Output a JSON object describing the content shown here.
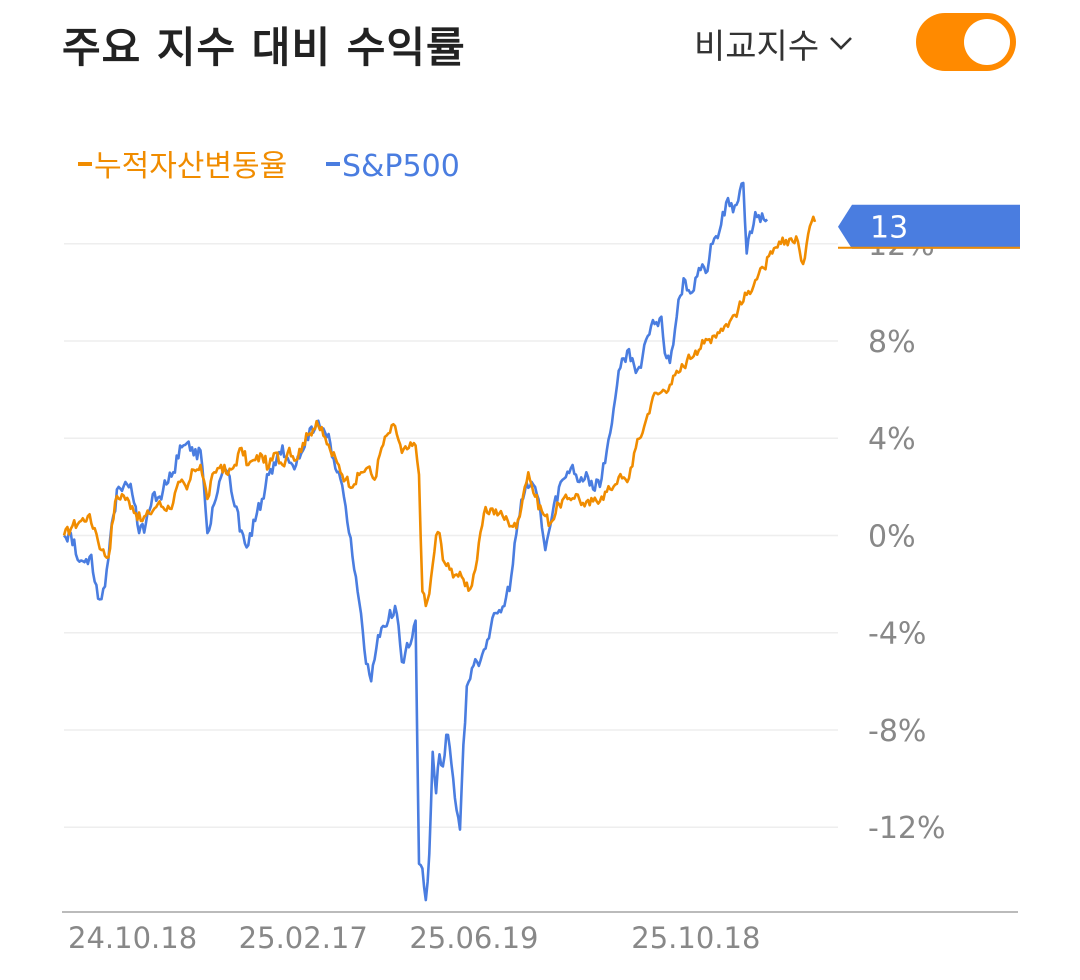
{
  "header": {
    "title": "주요 지수 대비 수익률",
    "compare_label": "비교지수",
    "toggle_on": true
  },
  "colors": {
    "portfolio": "#f08c00",
    "benchmark": "#4a7de0",
    "grid": "#eeeeee",
    "axis_text": "#888888",
    "toggle": "#ff8a00"
  },
  "chart_data": {
    "type": "line",
    "legend": [
      {
        "name": "누적자산변동율",
        "color": "#f08c00"
      },
      {
        "name": "S&P500",
        "color": "#4a7de0"
      }
    ],
    "x_ticks": [
      "24.10.18",
      "25.02.17",
      "25.06.19",
      "25.10.18"
    ],
    "x_tick_index": [
      0,
      100,
      200,
      330
    ],
    "y_ticks": [
      12,
      8,
      4,
      0,
      -4,
      -8,
      -12
    ],
    "y_tick_labels": [
      "12%",
      "8%",
      "4%",
      "0%",
      "-4%",
      "-8%",
      "-12%"
    ],
    "ylim": [
      -15.2,
      13.8
    ],
    "grid": true,
    "callout_value": "13",
    "series": [
      {
        "name": "누적자산변동율",
        "color": "#f08c00",
        "keypoints": [
          [
            0,
            0
          ],
          [
            5,
            0.4
          ],
          [
            10,
            0.6
          ],
          [
            14,
            0.8
          ],
          [
            18,
            0.3
          ],
          [
            22,
            -0.6
          ],
          [
            26,
            -0.9
          ],
          [
            30,
            1.4
          ],
          [
            34,
            1.7
          ],
          [
            40,
            1.2
          ],
          [
            45,
            0.6
          ],
          [
            50,
            0.9
          ],
          [
            55,
            1.3
          ],
          [
            62,
            1.1
          ],
          [
            68,
            2.2
          ],
          [
            72,
            1.9
          ],
          [
            76,
            2.7
          ],
          [
            80,
            2.9
          ],
          [
            84,
            1.5
          ],
          [
            88,
            2.6
          ],
          [
            92,
            2.9
          ],
          [
            96,
            2.5
          ],
          [
            100,
            2.9
          ],
          [
            104,
            3.6
          ],
          [
            108,
            2.9
          ],
          [
            112,
            3.1
          ],
          [
            116,
            3.3
          ],
          [
            120,
            2.8
          ],
          [
            124,
            3.4
          ],
          [
            128,
            2.9
          ],
          [
            132,
            3.6
          ],
          [
            136,
            3.1
          ],
          [
            140,
            3.8
          ],
          [
            144,
            4.2
          ],
          [
            148,
            4.7
          ],
          [
            152,
            4.1
          ],
          [
            156,
            3.5
          ],
          [
            160,
            3.0
          ],
          [
            165,
            2.3
          ],
          [
            170,
            2.1
          ],
          [
            174,
            2.6
          ],
          [
            178,
            2.8
          ],
          [
            182,
            2.3
          ],
          [
            186,
            3.6
          ],
          [
            190,
            4.2
          ],
          [
            194,
            4.5
          ],
          [
            198,
            3.4
          ],
          [
            202,
            3.6
          ],
          [
            206,
            3.7
          ],
          [
            208,
            2.5
          ],
          [
            210,
            -2.3
          ],
          [
            212,
            -2.9
          ],
          [
            214,
            -2.4
          ],
          [
            216,
            -1.2
          ],
          [
            218,
            0.0
          ],
          [
            220,
            0.1
          ],
          [
            222,
            -1.0
          ],
          [
            226,
            -1.4
          ],
          [
            230,
            -1.6
          ],
          [
            234,
            -1.8
          ],
          [
            238,
            -2.2
          ],
          [
            242,
            -1.0
          ],
          [
            246,
            0.9
          ],
          [
            250,
            1.1
          ],
          [
            255,
            0.9
          ],
          [
            260,
            0.6
          ],
          [
            265,
            0.3
          ],
          [
            270,
            2.0
          ],
          [
            272,
            2.6
          ],
          [
            276,
            1.6
          ],
          [
            280,
            1.0
          ],
          [
            285,
            0.5
          ],
          [
            290,
            1.3
          ],
          [
            295,
            1.5
          ],
          [
            300,
            1.7
          ],
          [
            305,
            1.2
          ],
          [
            310,
            1.4
          ],
          [
            315,
            1.6
          ],
          [
            320,
            1.9
          ],
          [
            325,
            2.4
          ],
          [
            330,
            2.2
          ],
          [
            335,
            3.6
          ],
          [
            340,
            4.5
          ],
          [
            345,
            5.7
          ],
          [
            350,
            5.9
          ],
          [
            355,
            6.2
          ],
          [
            360,
            6.7
          ],
          [
            365,
            7.2
          ],
          [
            370,
            7.6
          ],
          [
            375,
            7.9
          ],
          [
            380,
            8.2
          ],
          [
            385,
            8.5
          ],
          [
            390,
            8.8
          ],
          [
            395,
            9.3
          ],
          [
            400,
            9.9
          ],
          [
            405,
            10.5
          ],
          [
            410,
            11.0
          ],
          [
            415,
            11.6
          ],
          [
            420,
            12.0
          ],
          [
            425,
            12.2
          ],
          [
            430,
            12.1
          ],
          [
            432,
            11.3
          ],
          [
            434,
            11.4
          ],
          [
            436,
            12.4
          ],
          [
            438,
            12.9
          ],
          [
            440,
            12.9
          ]
        ]
      },
      {
        "name": "S&P500",
        "color": "#4a7de0",
        "keypoints": [
          [
            0,
            0
          ],
          [
            4,
            0.1
          ],
          [
            8,
            -1.0
          ],
          [
            12,
            -1.1
          ],
          [
            16,
            -0.8
          ],
          [
            20,
            -2.6
          ],
          [
            24,
            -2.1
          ],
          [
            28,
            0.5
          ],
          [
            32,
            2.0
          ],
          [
            36,
            2.2
          ],
          [
            40,
            1.7
          ],
          [
            44,
            0.1
          ],
          [
            48,
            0.5
          ],
          [
            52,
            1.7
          ],
          [
            56,
            1.6
          ],
          [
            60,
            2.1
          ],
          [
            64,
            2.6
          ],
          [
            68,
            3.7
          ],
          [
            72,
            3.8
          ],
          [
            76,
            3.3
          ],
          [
            80,
            3.5
          ],
          [
            84,
            0.1
          ],
          [
            88,
            1.3
          ],
          [
            92,
            2.4
          ],
          [
            96,
            2.6
          ],
          [
            100,
            1.2
          ],
          [
            104,
            0.2
          ],
          [
            108,
            -0.4
          ],
          [
            112,
            0.6
          ],
          [
            116,
            1.5
          ],
          [
            120,
            2.5
          ],
          [
            124,
            2.9
          ],
          [
            128,
            3.7
          ],
          [
            132,
            3.0
          ],
          [
            136,
            2.9
          ],
          [
            140,
            3.5
          ],
          [
            144,
            4.4
          ],
          [
            148,
            4.6
          ],
          [
            152,
            4.4
          ],
          [
            156,
            3.8
          ],
          [
            160,
            2.6
          ],
          [
            164,
            1.6
          ],
          [
            168,
            -0.1
          ],
          [
            170,
            -1.4
          ],
          [
            172,
            -2.3
          ],
          [
            174,
            -3.2
          ],
          [
            176,
            -4.7
          ],
          [
            178,
            -5.3
          ],
          [
            180,
            -6.0
          ],
          [
            182,
            -5.1
          ],
          [
            184,
            -4.1
          ],
          [
            186,
            -3.8
          ],
          [
            190,
            -3.5
          ],
          [
            194,
            -2.9
          ],
          [
            196,
            -3.7
          ],
          [
            198,
            -5.2
          ],
          [
            200,
            -4.8
          ],
          [
            202,
            -4.6
          ],
          [
            204,
            -4.2
          ],
          [
            206,
            -3.5
          ],
          [
            208,
            -13.5
          ],
          [
            210,
            -13.7
          ],
          [
            212,
            -15.0
          ],
          [
            214,
            -13.1
          ],
          [
            216,
            -8.9
          ],
          [
            218,
            -10.6
          ],
          [
            220,
            -9.0
          ],
          [
            222,
            -9.5
          ],
          [
            224,
            -8.2
          ],
          [
            226,
            -8.7
          ],
          [
            228,
            -10.0
          ],
          [
            230,
            -11.3
          ],
          [
            232,
            -12.1
          ],
          [
            234,
            -8.6
          ],
          [
            236,
            -6.2
          ],
          [
            238,
            -5.9
          ],
          [
            242,
            -5.2
          ],
          [
            246,
            -4.7
          ],
          [
            250,
            -3.8
          ],
          [
            254,
            -3.2
          ],
          [
            258,
            -2.9
          ],
          [
            262,
            -1.7
          ],
          [
            266,
            0.6
          ],
          [
            270,
            1.8
          ],
          [
            274,
            2.2
          ],
          [
            278,
            1.5
          ],
          [
            282,
            -0.6
          ],
          [
            286,
            0.8
          ],
          [
            290,
            2.0
          ],
          [
            294,
            2.4
          ],
          [
            298,
            2.9
          ],
          [
            302,
            2.2
          ],
          [
            306,
            2.6
          ],
          [
            310,
            1.9
          ],
          [
            312,
            2.3
          ],
          [
            314,
            2.0
          ],
          [
            318,
            3.5
          ],
          [
            322,
            5.2
          ],
          [
            326,
            6.9
          ],
          [
            330,
            7.6
          ],
          [
            334,
            7.0
          ],
          [
            338,
            6.9
          ],
          [
            342,
            8.2
          ],
          [
            346,
            8.7
          ],
          [
            350,
            9.0
          ],
          [
            352,
            7.5
          ],
          [
            355,
            7.1
          ],
          [
            360,
            9.7
          ],
          [
            364,
            10.5
          ],
          [
            368,
            10.0
          ],
          [
            372,
            11.0
          ],
          [
            376,
            10.8
          ],
          [
            380,
            12.0
          ],
          [
            384,
            12.5
          ],
          [
            388,
            13.7
          ],
          [
            392,
            13.3
          ],
          [
            396,
            14.2
          ],
          [
            398,
            14.5
          ],
          [
            400,
            11.6
          ],
          [
            401,
            12.2
          ],
          [
            402,
            12.5
          ],
          [
            404,
            12.8
          ],
          [
            405,
            13.3
          ],
          [
            406,
            13.1
          ],
          [
            408,
            12.9
          ],
          [
            410,
            13.0
          ],
          [
            412,
            13.0
          ]
        ]
      }
    ]
  }
}
